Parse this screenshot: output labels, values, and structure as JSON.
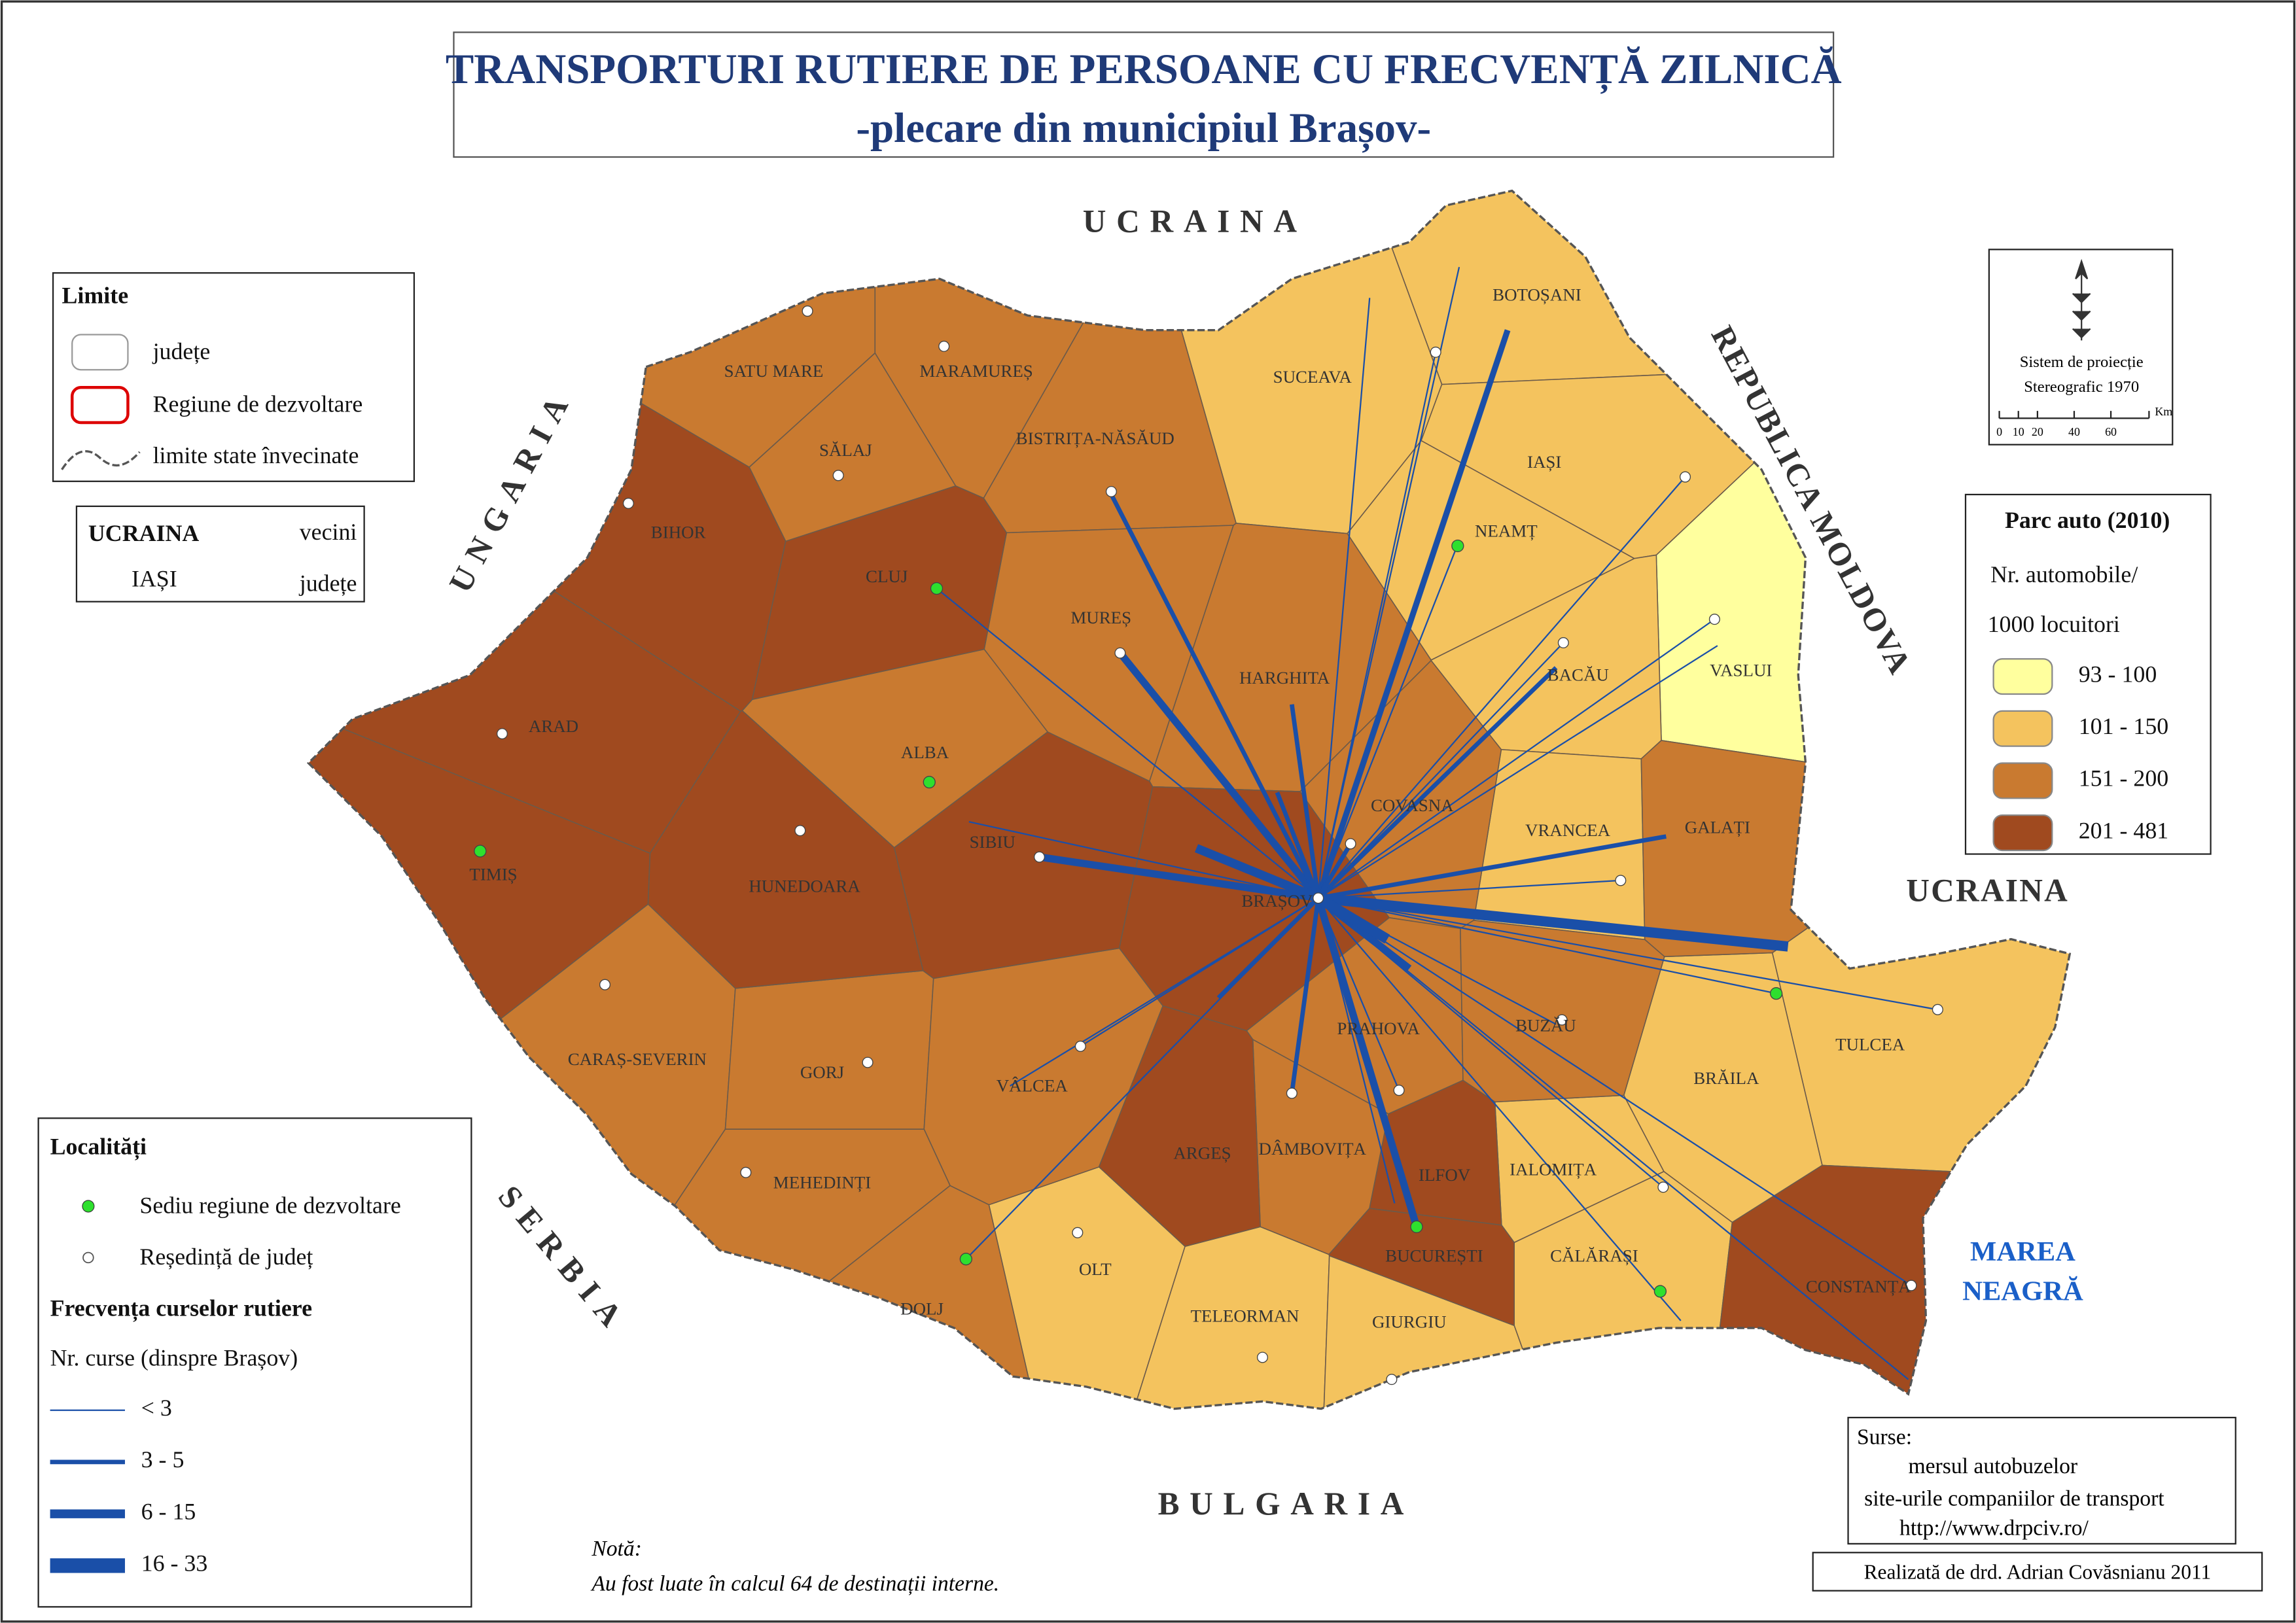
{
  "title": [
    "TRANSPORTURI RUTIERE DE PERSOANE CU FRECVENȚĂ ZILNICĂ",
    "-plecare din municipiul Brașov-"
  ],
  "neighbors": [
    "UCRAINA",
    "UNGARIA",
    "SERBIA",
    "BULGARIA",
    "UCRAINA",
    "REPUBLICA MOLDOVA"
  ],
  "sea": [
    "MAREA",
    "NEAGRĂ"
  ],
  "limits_legend": {
    "title": "Limite",
    "items": [
      "județe",
      "Regiune de dezvoltare",
      "limite state învecinate"
    ]
  },
  "labels_legend": {
    "rows": [
      [
        "UCRAINA",
        "vecini"
      ],
      [
        "IAȘI",
        "județe"
      ]
    ]
  },
  "projection": {
    "lines": [
      "Sistem de proiecție",
      "Stereografic 1970"
    ],
    "scale": [
      "0",
      "10",
      "20",
      "40",
      "60",
      "Km"
    ]
  },
  "parc_auto": {
    "title": "Parc auto (2010)",
    "subtitle": [
      "Nr. automobile/",
      "1000 locuitori"
    ],
    "classes": [
      {
        "label": "93 - 100",
        "color": "#ffff9e",
        "counties": [
          "VASLUI"
        ]
      },
      {
        "label": "101 - 150",
        "color": "#f4c35e",
        "counties": [
          "BOTOȘANI",
          "SUCEAVA",
          "IAȘI",
          "NEAMȚ",
          "BACĂU",
          "VRANCEA",
          "TULCEA",
          "BRĂILA",
          "IALOMIȚA",
          "CĂLĂRAȘI",
          "OLT",
          "TELEORMAN",
          "GIURGIU"
        ]
      },
      {
        "label": "151 - 200",
        "color": "#c97a30",
        "counties": [
          "SATU MARE",
          "MARAMUREȘ",
          "BISTRIȚA-NĂSĂUD",
          "SĂLAJ",
          "MUREȘ",
          "HARGHITA",
          "ALBA",
          "COVASNA",
          "GALAȚI",
          "PRAHOVA",
          "BUZĂU",
          "CARAȘ-SEVERIN",
          "GORJ",
          "VÂLCEA",
          "DÂMBOVIȚA",
          "MEHEDINȚI",
          "DOLJ"
        ]
      },
      {
        "label": "201 - 481",
        "color": "#a04a1f",
        "counties": [
          "BIHOR",
          "CLUJ",
          "ARAD",
          "SIBIU",
          "TIMIȘ",
          "HUNEDOARA",
          "BRAȘOV",
          "ARGEȘ",
          "ILFOV",
          "BUCUREȘTI",
          "CONSTANȚA"
        ]
      }
    ]
  },
  "localitati": {
    "title": "Localități",
    "items": [
      "Sediu regiune de dezvoltare",
      "Reședință de județ"
    ]
  },
  "frequency": {
    "title": "Frecvența curselor rutiere",
    "subtitle": "Nr. curse (dinspre Brașov)",
    "classes": [
      "< 3",
      "3 - 5",
      "6 - 15",
      "16 - 33"
    ]
  },
  "note": [
    "Notă:",
    "Au fost luate în calcul 64 de destinații interne."
  ],
  "sources": [
    "Surse:",
    "mersul autobuzelor",
    "site-urile companiilor de transport",
    "http://www.drpciv.ro/"
  ],
  "author": "Realizată de drd. Adrian Covăsnianu 2011"
}
